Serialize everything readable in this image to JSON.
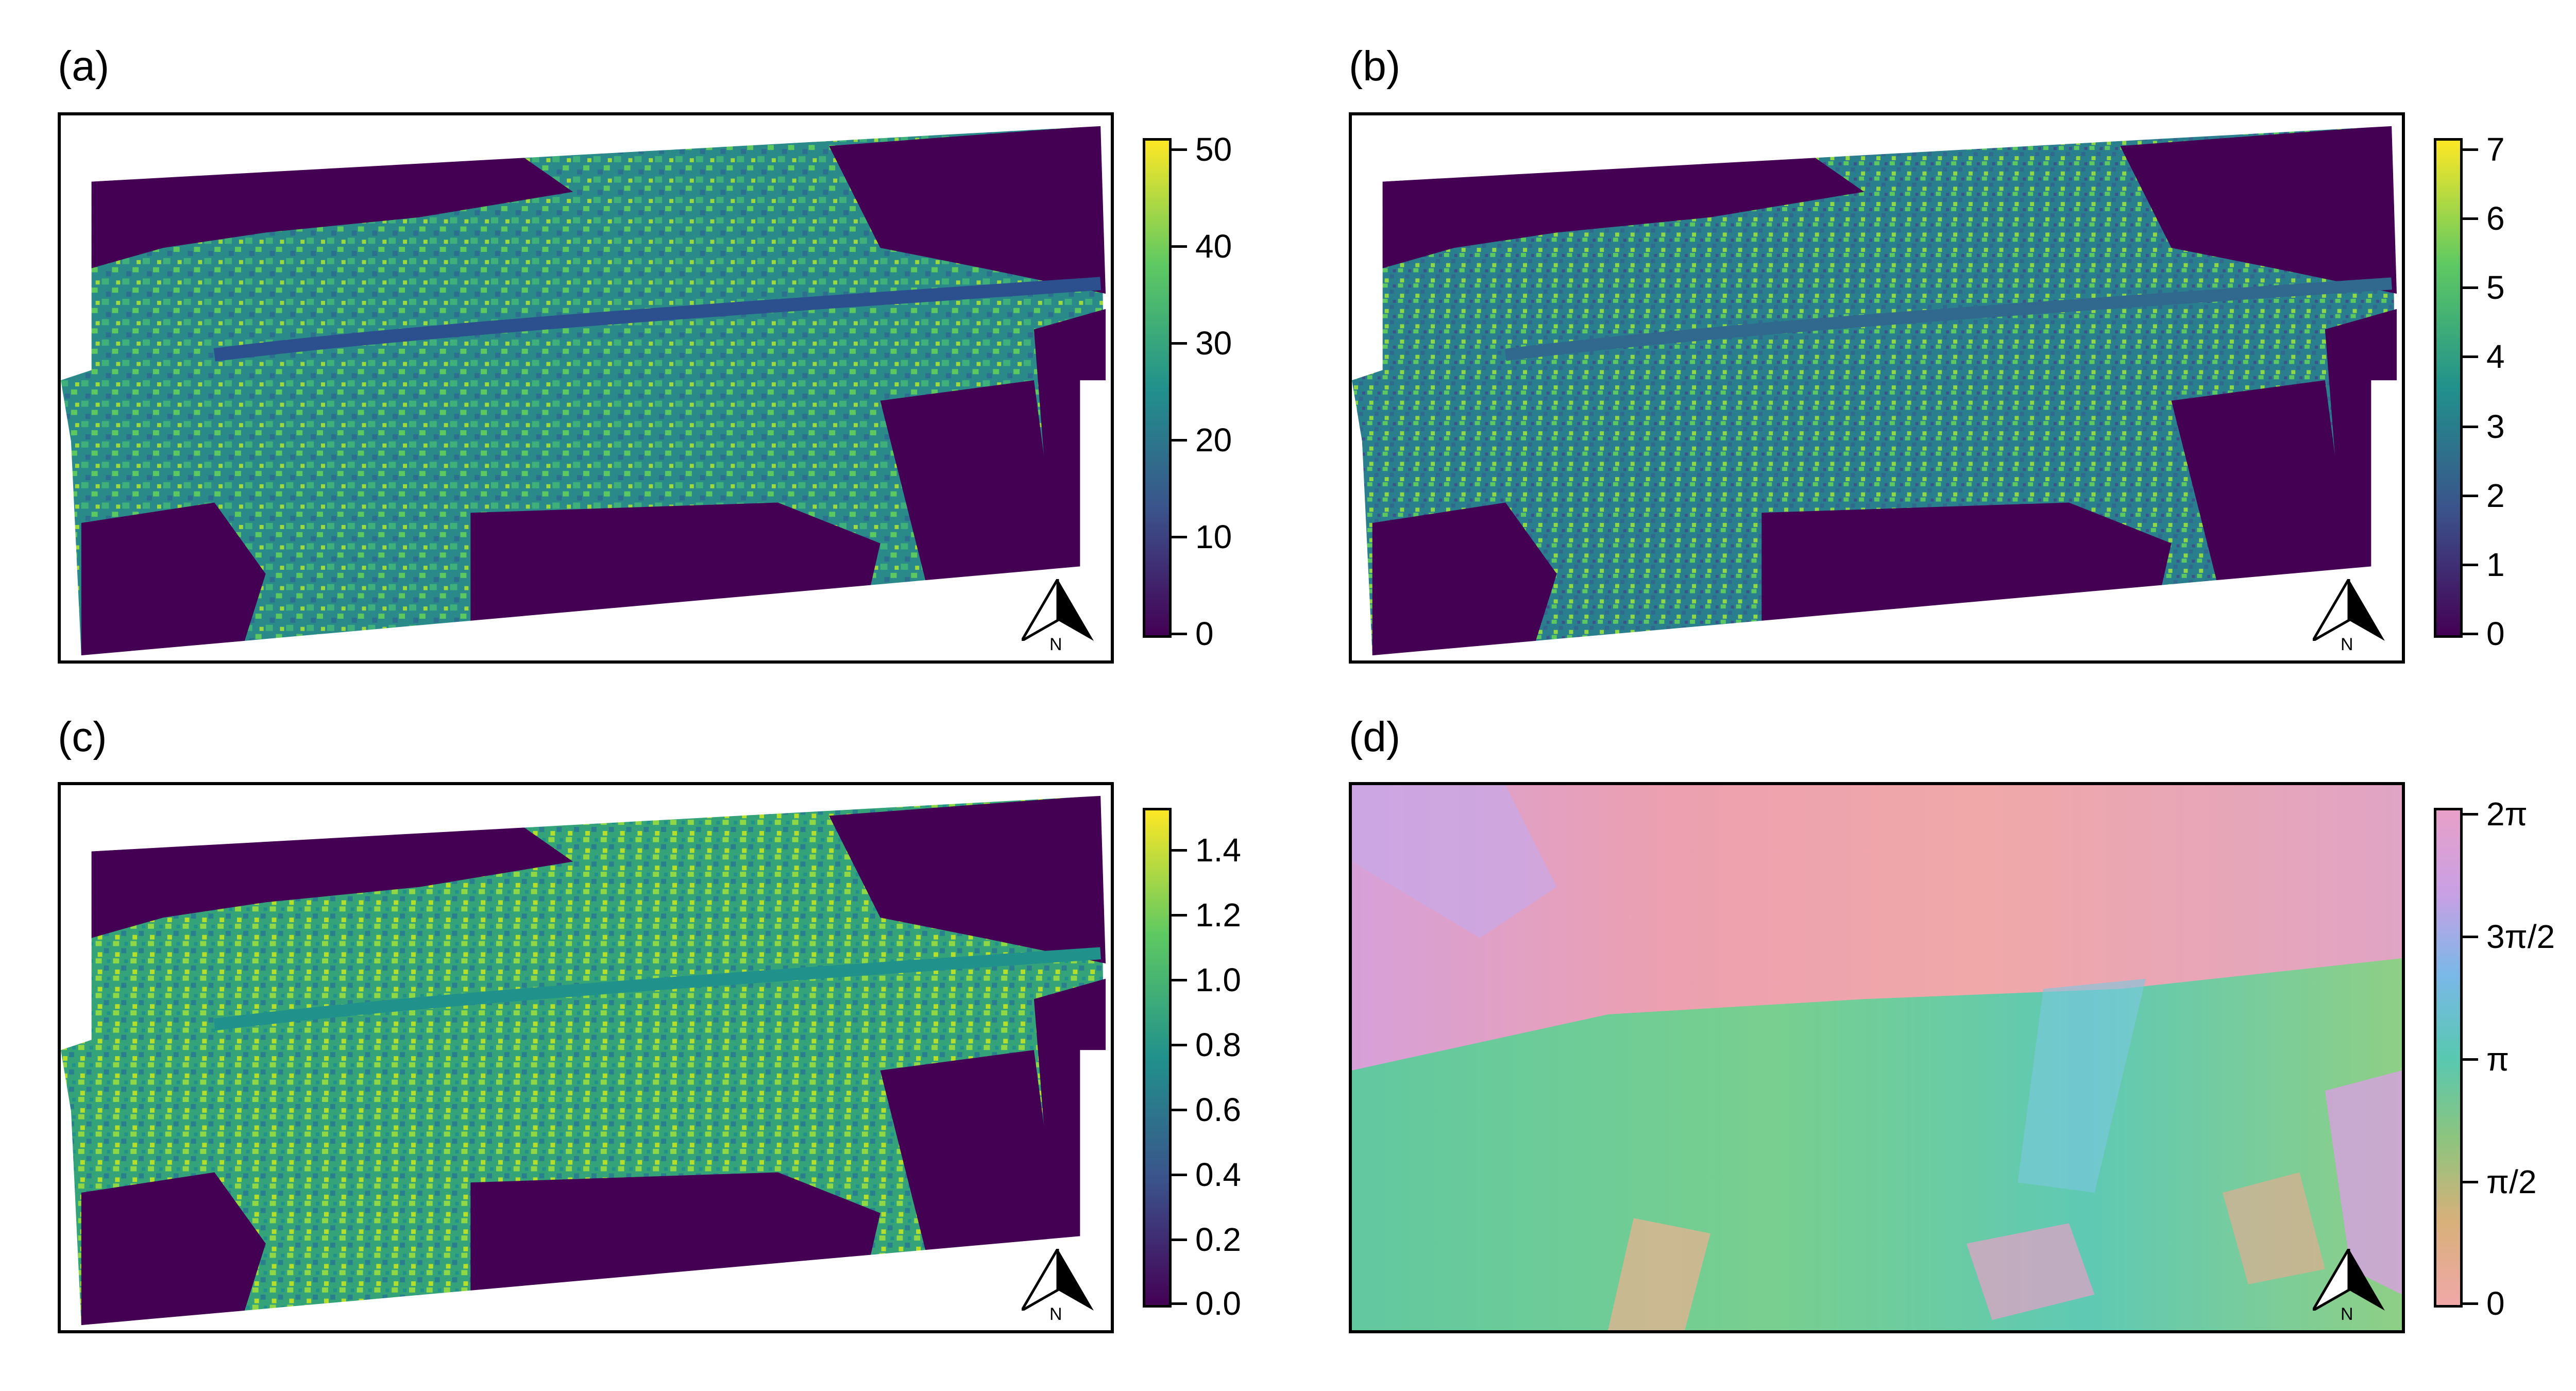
{
  "panels": [
    {
      "label": "(a)",
      "colorbar": {
        "colormap": "viridis",
        "ticks": [
          "50",
          "40",
          "30",
          "20",
          "10",
          "0"
        ]
      }
    },
    {
      "label": "(b)",
      "colorbar": {
        "colormap": "viridis",
        "ticks": [
          "7",
          "6",
          "5",
          "4",
          "3",
          "2",
          "1",
          "0"
        ]
      }
    },
    {
      "label": "(c)",
      "colorbar": {
        "colormap": "viridis",
        "ticks": [
          "1.4",
          "1.2",
          "1.0",
          "0.8",
          "0.6",
          "0.4",
          "0.2",
          "0.0"
        ]
      }
    },
    {
      "label": "(d)",
      "colorbar": {
        "colormap": "cyclic-pastel",
        "ticks": [
          "2π",
          "3π/2",
          "π",
          "π/2",
          "0"
        ]
      }
    }
  ],
  "north_arrow": {
    "letter": "N",
    "icon": "north-arrow-icon"
  },
  "colors": {
    "viridis_low": "#440154",
    "viridis_mid": "#21918c",
    "viridis_high": "#fde725",
    "cyclic_pink": "#e8a0b8",
    "cyclic_violet": "#c79ae0",
    "cyclic_teal": "#6ccfa8"
  }
}
